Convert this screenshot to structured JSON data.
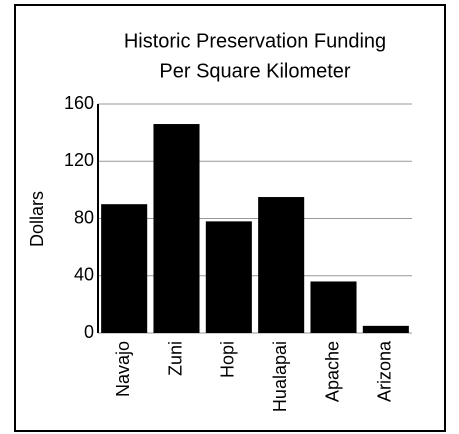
{
  "chart_data": {
    "type": "bar",
    "title": [
      "Historic Preservation Funding",
      "Per Square Kilometer"
    ],
    "ylabel": "Dollars",
    "categories": [
      "Navajo",
      "Zuni",
      "Hopi",
      "Hualapai",
      "Apache",
      "Arizona"
    ],
    "values": [
      90,
      146,
      78,
      95,
      36,
      5
    ],
    "color": "#000000",
    "ylim": [
      0,
      160
    ],
    "yticks": [
      0,
      40,
      80,
      120,
      160
    ],
    "grid": true
  }
}
